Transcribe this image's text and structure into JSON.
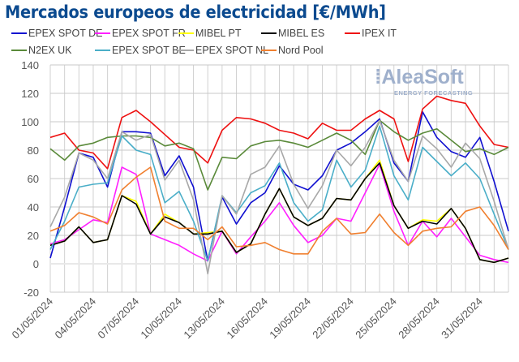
{
  "chart_data": {
    "type": "line",
    "title": "Mercados europeos de electricidad [€/MWh]",
    "xlabel": "",
    "ylabel": "",
    "ylim": [
      -20,
      140
    ],
    "yticks": [
      -20,
      0,
      20,
      40,
      60,
      80,
      100,
      120,
      140
    ],
    "grid": true,
    "legend_placement": "top",
    "x": [
      "01/05/2024",
      "02/05/2024",
      "03/05/2024",
      "04/05/2024",
      "05/05/2024",
      "06/05/2024",
      "07/05/2024",
      "08/05/2024",
      "09/05/2024",
      "10/05/2024",
      "11/05/2024",
      "12/05/2024",
      "13/05/2024",
      "14/05/2024",
      "15/05/2024",
      "16/05/2024",
      "17/05/2024",
      "18/05/2024",
      "19/05/2024",
      "20/05/2024",
      "21/05/2024",
      "22/05/2024",
      "23/05/2024",
      "24/05/2024",
      "25/05/2024",
      "26/05/2024",
      "27/05/2024",
      "28/05/2024",
      "29/05/2024",
      "30/05/2024",
      "31/05/2024",
      "01/06/2024",
      "02/06/2024"
    ],
    "xtick_labels": [
      "01/05/2024",
      "04/05/2024",
      "07/05/2024",
      "10/05/2024",
      "13/05/2024",
      "16/05/2024",
      "19/05/2024",
      "22/05/2024",
      "25/05/2024",
      "28/05/2024",
      "31/05/2024"
    ],
    "series": [
      {
        "name": "EPEX SPOT DE",
        "color": "#1010d0",
        "values": [
          4,
          40,
          78,
          75,
          54,
          93,
          93,
          92,
          62,
          76,
          54,
          2,
          47,
          28,
          43,
          50,
          69,
          56,
          52,
          62,
          80,
          85,
          93,
          102,
          71,
          58,
          107,
          89,
          79,
          75,
          89,
          58,
          23
        ]
      },
      {
        "name": "EPEX SPOT FR",
        "color": "#ff20ff",
        "values": [
          14,
          17,
          24,
          31,
          29,
          68,
          63,
          21,
          17,
          13,
          7,
          2,
          23,
          7,
          19,
          30,
          43,
          27,
          15,
          20,
          32,
          30,
          50,
          70,
          37,
          13,
          30,
          19,
          32,
          19,
          6,
          3,
          1
        ]
      },
      {
        "name": "MIBEL PT",
        "color": "#ffff00",
        "values": [
          13,
          16,
          26,
          15,
          17,
          48,
          44,
          21,
          35,
          29,
          21,
          22,
          23,
          8,
          14,
          35,
          53,
          33,
          27,
          32,
          46,
          45,
          60,
          73,
          41,
          25,
          31,
          30,
          39,
          25,
          3,
          1,
          4
        ]
      },
      {
        "name": "MIBEL ES",
        "color": "#000000",
        "values": [
          13,
          16,
          26,
          15,
          17,
          48,
          42,
          21,
          33,
          29,
          21,
          21,
          23,
          8,
          14,
          35,
          53,
          33,
          27,
          32,
          46,
          45,
          60,
          71,
          41,
          25,
          30,
          28,
          39,
          25,
          3,
          1,
          4
        ]
      },
      {
        "name": "IPEX IT",
        "color": "#ee1111",
        "values": [
          89,
          92,
          80,
          78,
          67,
          103,
          108,
          100,
          91,
          82,
          80,
          71,
          94,
          103,
          102,
          99,
          94,
          92,
          88,
          99,
          94,
          94,
          102,
          108,
          102,
          72,
          109,
          118,
          115,
          113,
          97,
          84,
          82
        ]
      },
      {
        "name": "N2EX UK",
        "color": "#5a8a3a",
        "values": [
          81,
          73,
          83,
          85,
          89,
          90,
          90,
          89,
          83,
          85,
          81,
          52,
          75,
          74,
          83,
          86,
          87,
          85,
          82,
          87,
          92,
          87,
          77,
          101,
          93,
          87,
          92,
          95,
          87,
          79,
          81,
          77,
          82
        ]
      },
      {
        "name": "EPEX SPOT BE",
        "color": "#4aaec8",
        "values": [
          10,
          30,
          54,
          56,
          57,
          90,
          80,
          77,
          43,
          51,
          30,
          2,
          48,
          36,
          50,
          55,
          71,
          43,
          30,
          38,
          73,
          54,
          66,
          97,
          62,
          45,
          82,
          72,
          62,
          71,
          60,
          35,
          10
        ]
      },
      {
        "name": "EPEX SPOT NL",
        "color": "#a8a8a8",
        "values": [
          26,
          47,
          78,
          73,
          60,
          93,
          87,
          91,
          59,
          73,
          45,
          -7,
          48,
          35,
          63,
          68,
          83,
          56,
          39,
          55,
          80,
          69,
          82,
          101,
          73,
          58,
          90,
          81,
          68,
          85,
          74,
          44,
          10
        ]
      },
      {
        "name": "Nord Pool",
        "color": "#f08030",
        "values": [
          23,
          27,
          36,
          33,
          28,
          52,
          61,
          68,
          30,
          25,
          25,
          17,
          26,
          12,
          13,
          15,
          10,
          7,
          7,
          23,
          32,
          21,
          22,
          35,
          22,
          13,
          23,
          25,
          26,
          37,
          40,
          27,
          10
        ]
      }
    ]
  },
  "watermark": {
    "brand": "AleaSoft",
    "tagline": "ENERGY FORECASTING"
  }
}
